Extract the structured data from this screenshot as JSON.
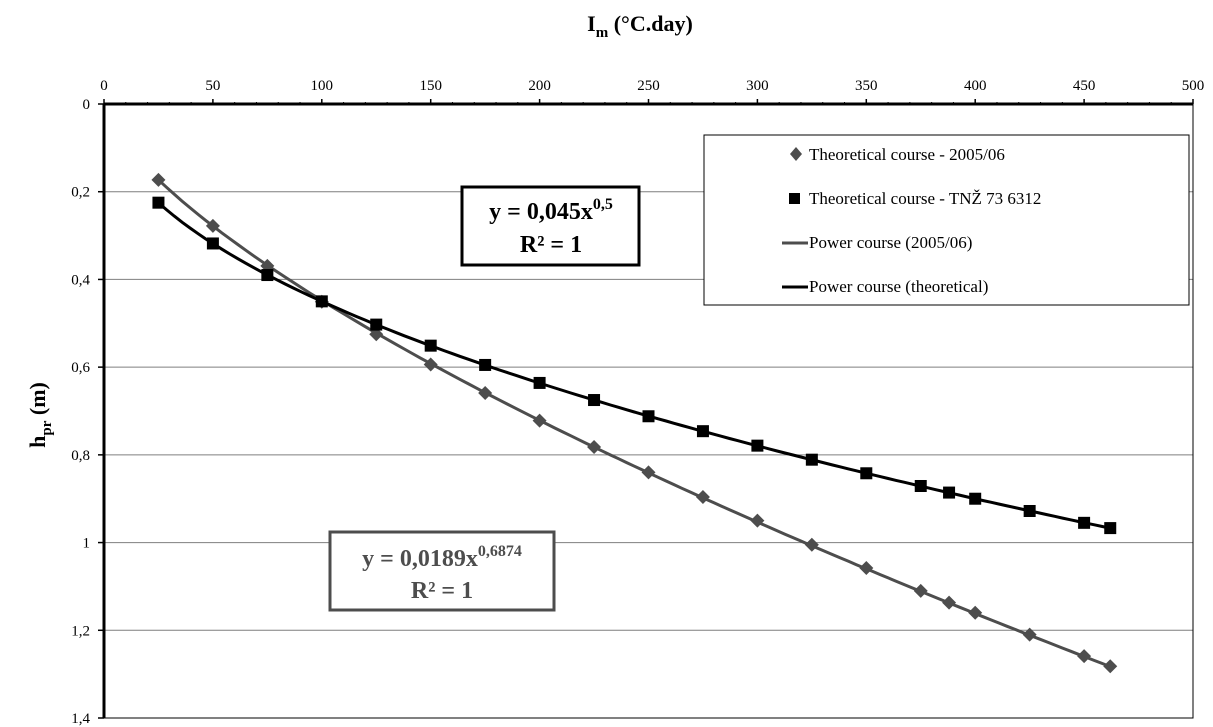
{
  "chart_data": {
    "type": "scatter",
    "xlabel": "I",
    "xlabel_sub": "m",
    "xlabel_unit": " (°C.day)",
    "ylabel": "h",
    "ylabel_sub": "pr",
    "ylabel_unit": " (m)",
    "xlim": [
      0,
      500
    ],
    "ylim": [
      0,
      1.4
    ],
    "y_inverted": true,
    "x_axis_position": "top",
    "grid": {
      "horizontal": true,
      "vertical": false
    },
    "legend_position": "top-right",
    "xticks": [
      {
        "value": 0,
        "label": "0"
      },
      {
        "value": 50,
        "label": "50"
      },
      {
        "value": 100,
        "label": "100"
      },
      {
        "value": 150,
        "label": "150"
      },
      {
        "value": 200,
        "label": "200"
      },
      {
        "value": 250,
        "label": "250"
      },
      {
        "value": 300,
        "label": "300"
      },
      {
        "value": 350,
        "label": "350"
      },
      {
        "value": 400,
        "label": "400"
      },
      {
        "value": 450,
        "label": "450"
      },
      {
        "value": 500,
        "label": "500"
      }
    ],
    "yticks": [
      {
        "value": 0,
        "label": "0"
      },
      {
        "value": 0.2,
        "label": "0,2"
      },
      {
        "value": 0.4,
        "label": "0,4"
      },
      {
        "value": 0.6,
        "label": "0,6"
      },
      {
        "value": 0.8,
        "label": "0,8"
      },
      {
        "value": 1.0,
        "label": "1"
      },
      {
        "value": 1.2,
        "label": "1,2"
      },
      {
        "value": 1.4,
        "label": "1,4"
      }
    ],
    "series": [
      {
        "name": "Theoretical course - 2005/06",
        "marker": "diamond",
        "color": "#4d4d4d",
        "x": [
          25,
          50,
          75,
          100,
          125,
          150,
          175,
          200,
          225,
          250,
          275,
          300,
          325,
          350,
          375,
          388,
          400,
          425,
          450,
          462
        ],
        "y": [
          0.173,
          0.278,
          0.369,
          0.451,
          0.525,
          0.594,
          0.659,
          0.722,
          0.782,
          0.84,
          0.896,
          0.95,
          1.005,
          1.058,
          1.11,
          1.137,
          1.16,
          1.21,
          1.259,
          1.282
        ]
      },
      {
        "name": "Theoretical course - TNŽ 73 6312",
        "marker": "square",
        "color": "#000000",
        "x": [
          25,
          50,
          75,
          100,
          125,
          150,
          175,
          200,
          225,
          250,
          275,
          300,
          325,
          350,
          375,
          388,
          400,
          425,
          450,
          462
        ],
        "y": [
          0.225,
          0.318,
          0.39,
          0.45,
          0.503,
          0.551,
          0.595,
          0.636,
          0.675,
          0.712,
          0.746,
          0.779,
          0.811,
          0.842,
          0.871,
          0.886,
          0.9,
          0.928,
          0.955,
          0.967
        ]
      }
    ],
    "trendlines": [
      {
        "name": "Power course (2005/06)",
        "color": "#4d4d4d",
        "a": 0.0189,
        "b": 0.6874,
        "x_range": [
          25,
          462
        ]
      },
      {
        "name": "Power course (theoretical)",
        "color": "#000000",
        "a": 0.045,
        "b": 0.5,
        "x_range": [
          25,
          462
        ]
      }
    ],
    "annotations": [
      {
        "id": "eq-theoretical",
        "line1_base": "y = 0,045x",
        "line1_sup": "0,5",
        "line2": "R² = 1",
        "color": "#000000"
      },
      {
        "id": "eq-2005",
        "line1_base": "y = 0,0189x",
        "line1_sup": "0,6874",
        "line2": "R² = 1",
        "color": "#4d4d4d"
      }
    ]
  }
}
